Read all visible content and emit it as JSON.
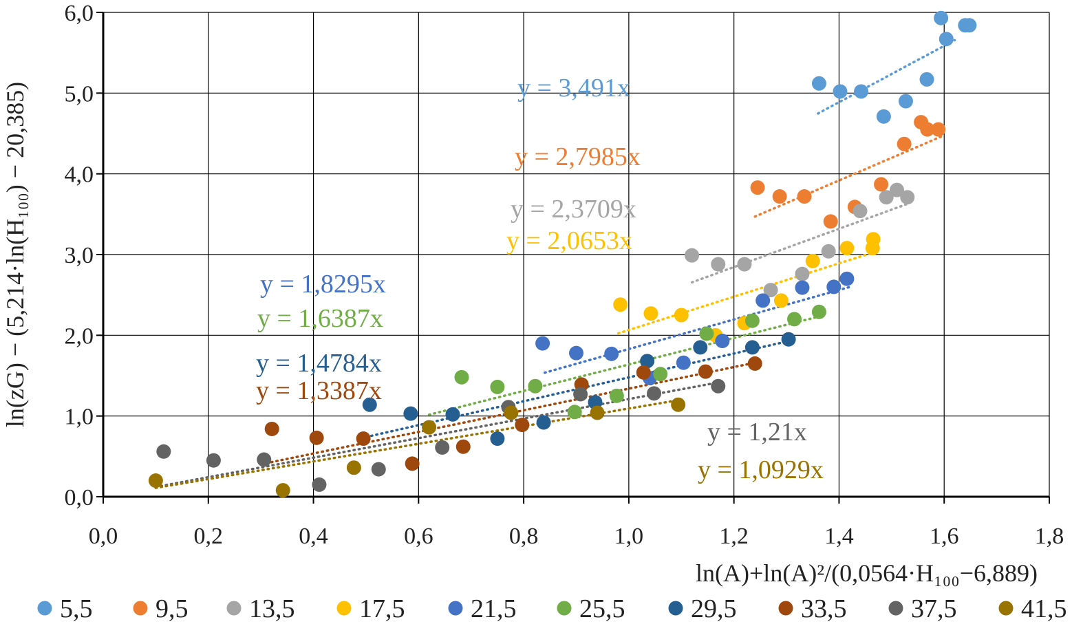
{
  "chart_data": {
    "type": "scatter",
    "xlabel": "ln(A)+ln(A)²/(0,0564·H₁₀₀−6,889)",
    "ylabel": "ln(zG) − (5,214·ln(H₁₀₀) − 20,385)",
    "xlim": [
      0,
      1.8
    ],
    "ylim": [
      0,
      6
    ],
    "xticks": [
      "0,0",
      "0,2",
      "0,4",
      "0,6",
      "0,8",
      "1,0",
      "1,2",
      "1,4",
      "1,6",
      "1,8"
    ],
    "yticks": [
      "0,0",
      "1,0",
      "2,0",
      "3,0",
      "4,0",
      "5,0",
      "6,0"
    ],
    "grid": true,
    "legend_position": "bottom",
    "series": [
      {
        "name": "5,5",
        "color": "#5b9bd5",
        "slope": 3.491,
        "equation": "y = 3,491x",
        "trend_x": [
          1.36,
          1.62
        ],
        "points": [
          [
            1.362,
            5.12
          ],
          [
            1.402,
            5.02
          ],
          [
            1.442,
            5.02
          ],
          [
            1.485,
            4.71
          ],
          [
            1.527,
            4.9
          ],
          [
            1.567,
            5.17
          ],
          [
            1.594,
            5.93
          ],
          [
            1.604,
            5.67
          ],
          [
            1.64,
            5.84
          ],
          [
            1.648,
            5.84
          ]
        ]
      },
      {
        "name": "9,5",
        "color": "#ed7d31",
        "slope": 2.7985,
        "equation": "y = 2,7985x",
        "trend_x": [
          1.24,
          1.6
        ],
        "points": [
          [
            1.245,
            3.83
          ],
          [
            1.287,
            3.72
          ],
          [
            1.334,
            3.72
          ],
          [
            1.384,
            3.41
          ],
          [
            1.43,
            3.59
          ],
          [
            1.48,
            3.87
          ],
          [
            1.524,
            4.37
          ],
          [
            1.556,
            4.64
          ],
          [
            1.568,
            4.55
          ],
          [
            1.589,
            4.55
          ]
        ]
      },
      {
        "name": "13,5",
        "color": "#a5a5a5",
        "slope": 2.3709,
        "equation": "y = 2,3709x",
        "trend_x": [
          1.12,
          1.53
        ],
        "points": [
          [
            1.12,
            2.99
          ],
          [
            1.17,
            2.88
          ],
          [
            1.22,
            2.88
          ],
          [
            1.27,
            2.56
          ],
          [
            1.33,
            2.76
          ],
          [
            1.38,
            3.04
          ],
          [
            1.44,
            3.54
          ],
          [
            1.49,
            3.71
          ],
          [
            1.51,
            3.8
          ],
          [
            1.53,
            3.71
          ]
        ]
      },
      {
        "name": "17,5",
        "color": "#ffc000",
        "slope": 2.0653,
        "equation": "y = 2,0653x",
        "trend_x": [
          0.98,
          1.47
        ],
        "points": [
          [
            0.984,
            2.38
          ],
          [
            1.042,
            2.27
          ],
          [
            1.1,
            2.25
          ],
          [
            1.165,
            2.0
          ],
          [
            1.22,
            2.15
          ],
          [
            1.29,
            2.43
          ],
          [
            1.35,
            2.92
          ],
          [
            1.415,
            3.08
          ],
          [
            1.465,
            3.19
          ],
          [
            1.464,
            3.08
          ]
        ]
      },
      {
        "name": "21,5",
        "color": "#4472c4",
        "slope": 1.8295,
        "equation": "y = 1,8295x",
        "trend_x": [
          0.84,
          1.42
        ],
        "points": [
          [
            0.836,
            1.9
          ],
          [
            0.9,
            1.78
          ],
          [
            0.967,
            1.77
          ],
          [
            1.04,
            1.47
          ],
          [
            1.104,
            1.66
          ],
          [
            1.178,
            1.93
          ],
          [
            1.255,
            2.43
          ],
          [
            1.33,
            2.59
          ],
          [
            1.39,
            2.6
          ],
          [
            1.415,
            2.7
          ]
        ]
      },
      {
        "name": "25,5",
        "color": "#70ad47",
        "slope": 1.6387,
        "equation": "y = 1,6387x",
        "trend_x": [
          0.62,
          1.36
        ],
        "points": [
          [
            0.682,
            1.48
          ],
          [
            0.75,
            1.36
          ],
          [
            0.822,
            1.37
          ],
          [
            0.897,
            1.05
          ],
          [
            0.977,
            1.25
          ],
          [
            1.06,
            1.52
          ],
          [
            1.148,
            2.02
          ],
          [
            1.235,
            2.18
          ],
          [
            1.315,
            2.2
          ],
          [
            1.362,
            2.29
          ]
        ]
      },
      {
        "name": "29,5",
        "color": "#255e91",
        "slope": 1.4784,
        "equation": "y = 1,4784x",
        "trend_x": [
          0.51,
          1.31
        ],
        "points": [
          [
            0.507,
            1.14
          ],
          [
            0.585,
            1.03
          ],
          [
            0.665,
            1.02
          ],
          [
            0.75,
            0.72
          ],
          [
            0.838,
            0.92
          ],
          [
            0.936,
            1.17
          ],
          [
            1.035,
            1.68
          ],
          [
            1.136,
            1.85
          ],
          [
            1.235,
            1.85
          ],
          [
            1.304,
            1.95
          ]
        ]
      },
      {
        "name": "33,5",
        "color": "#9e480e",
        "slope": 1.3387,
        "equation": "y = 1,3387x",
        "trend_x": [
          0.32,
          1.24
        ],
        "points": [
          [
            0.321,
            0.84
          ],
          [
            0.406,
            0.73
          ],
          [
            0.495,
            0.72
          ],
          [
            0.588,
            0.41
          ],
          [
            0.685,
            0.62
          ],
          [
            0.797,
            0.89
          ],
          [
            0.91,
            1.39
          ],
          [
            1.028,
            1.54
          ],
          [
            1.146,
            1.55
          ],
          [
            1.24,
            1.65
          ]
        ]
      },
      {
        "name": "37,5",
        "color": "#636363",
        "slope": 1.21,
        "equation": "y = 1,21x",
        "trend_x": [
          0.1,
          1.17
        ],
        "points": [
          [
            0.115,
            0.56
          ],
          [
            0.21,
            0.45
          ],
          [
            0.306,
            0.46
          ],
          [
            0.411,
            0.15
          ],
          [
            0.524,
            0.34
          ],
          [
            0.645,
            0.61
          ],
          [
            0.771,
            1.11
          ],
          [
            0.908,
            1.27
          ],
          [
            1.048,
            1.28
          ],
          [
            1.17,
            1.37
          ]
        ]
      },
      {
        "name": "41,5",
        "color": "#997300",
        "slope": 1.0929,
        "equation": "y = 1,0929x",
        "trend_x": [
          0.1,
          1.1
        ],
        "points": [
          [
            0.1,
            0.2
          ],
          [
            0.342,
            0.08
          ],
          [
            0.477,
            0.36
          ],
          [
            0.62,
            0.86
          ],
          [
            0.776,
            1.04
          ],
          [
            0.94,
            1.04
          ],
          [
            1.094,
            1.14
          ]
        ]
      }
    ]
  }
}
